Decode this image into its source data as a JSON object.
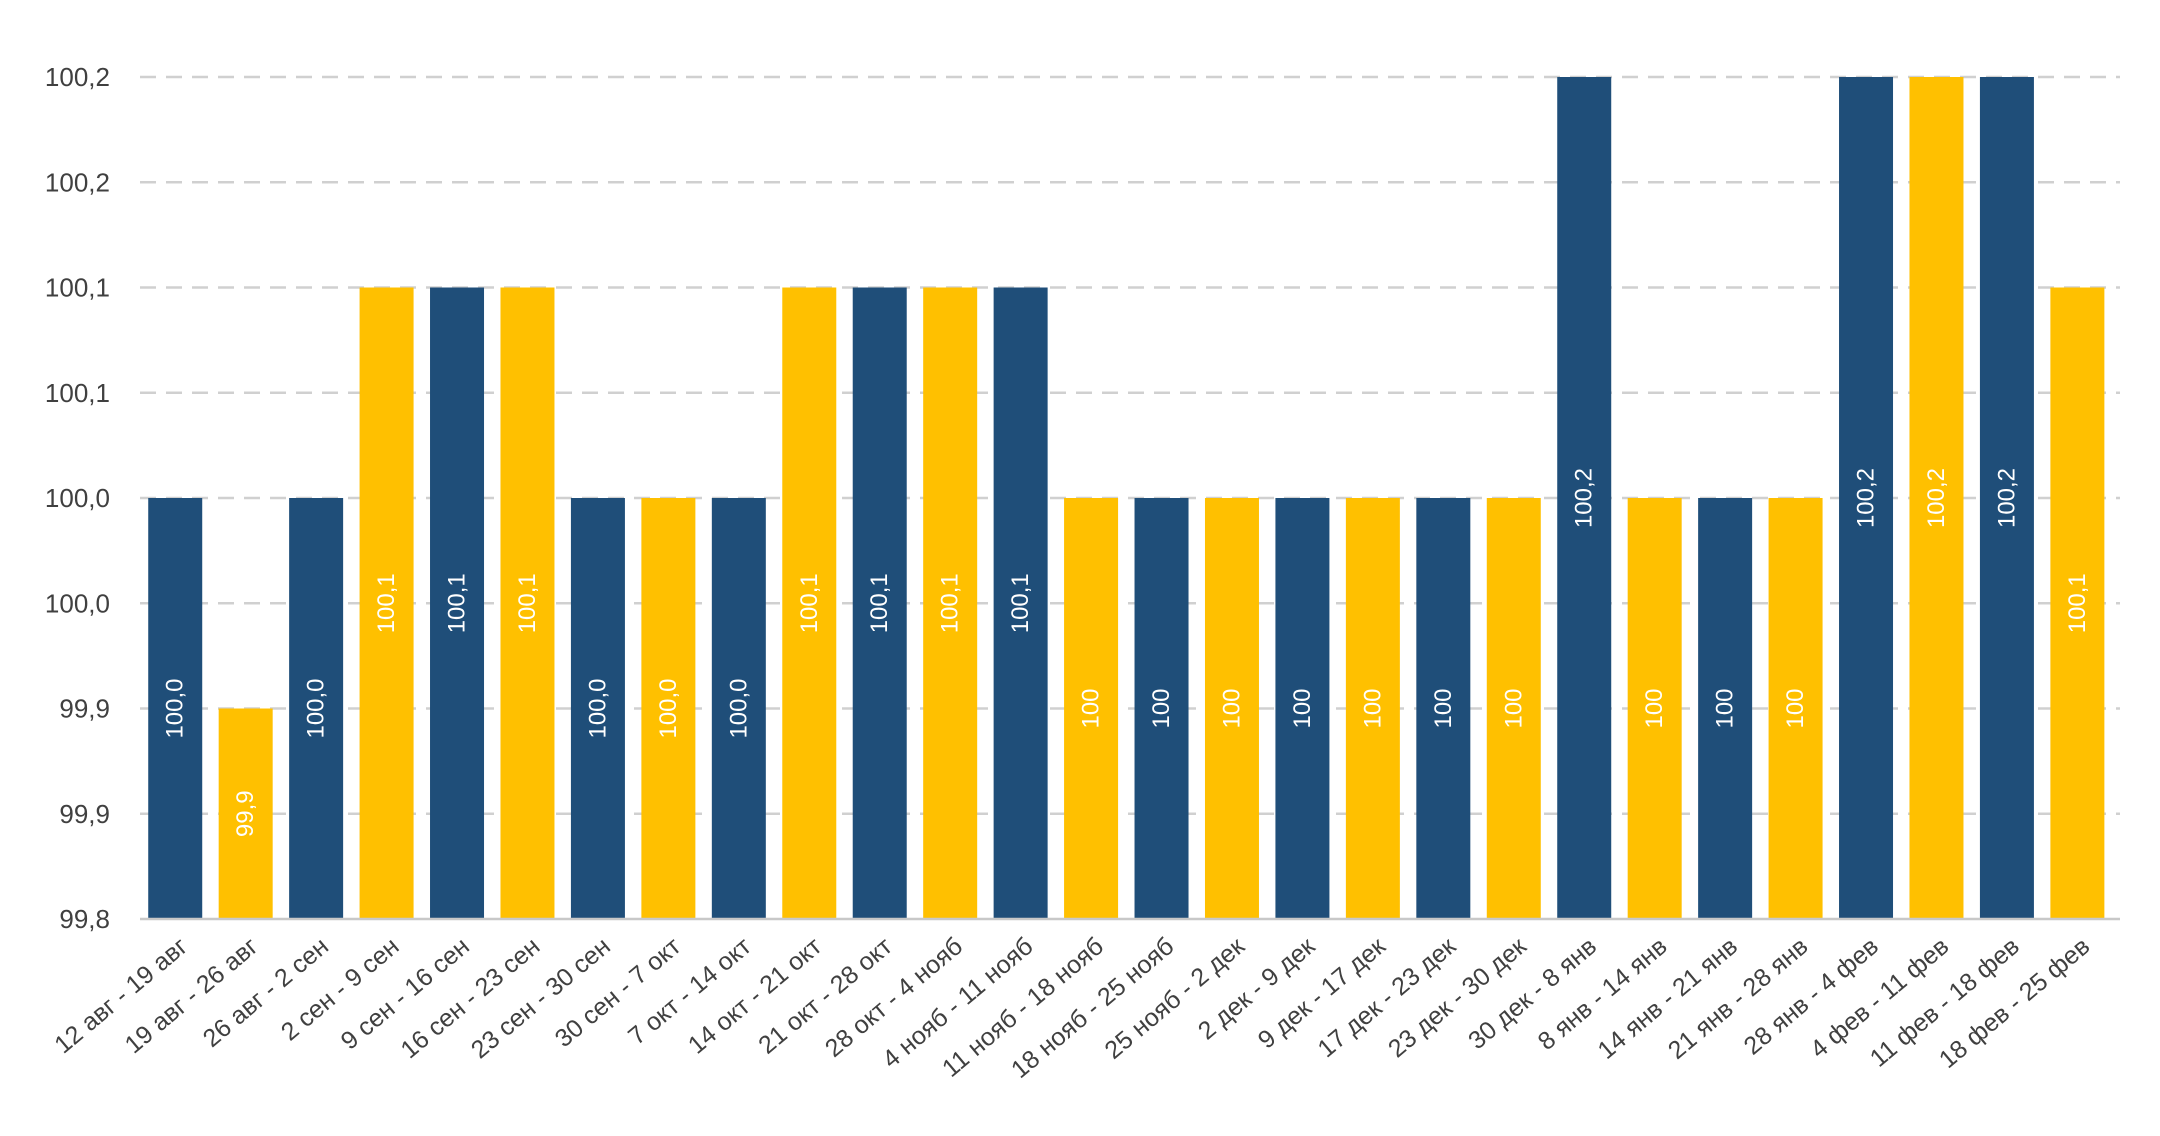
{
  "chart_data": {
    "type": "bar",
    "title": "",
    "xlabel": "",
    "ylabel": "",
    "ylim": [
      99.8,
      100.2
    ],
    "grid": true,
    "y_tick_labels": [
      "99,8",
      "99,9",
      "99,9",
      "100,0",
      "100,0",
      "100,1",
      "100,1",
      "100,2",
      "100,2"
    ],
    "colors": {
      "navy": "#1F4E79",
      "gold": "#FFC000"
    },
    "categories": [
      "12 авг - 19 авг",
      "19 авг - 26 авг",
      "26 авг - 2 сен",
      "2 сен - 9 сен",
      "9 сен - 16 сен",
      "16 сен - 23 сен",
      "23 сен - 30 сен",
      "30 сен - 7 окт",
      "7 окт - 14 окт",
      "14 окт - 21 окт",
      "21 окт - 28 окт",
      "28 окт - 4 нояб",
      "4 нояб - 11 нояб",
      "11 нояб - 18 нояб",
      "18 нояб - 25 нояб",
      "25 нояб - 2 дек",
      "2 дек - 9 дек",
      "9 дек - 17 дек",
      "17 дек - 23 дек",
      "23 дек - 30 дек",
      "30 дек - 8 янв",
      "8 янв - 14 янв",
      "14 янв - 21 янв",
      "21 янв - 28 янв",
      "28 янв - 4 фев",
      "4 фев - 11 фев",
      "11 фев - 18 фев",
      "18 фев - 25 фев"
    ],
    "values": [
      100.0,
      99.9,
      100.0,
      100.1,
      100.1,
      100.1,
      100.0,
      100.0,
      100.0,
      100.1,
      100.1,
      100.1,
      100.1,
      100.0,
      100.0,
      100.0,
      100.0,
      100.0,
      100.0,
      100.0,
      100.2,
      100.0,
      100.0,
      100.0,
      100.2,
      100.2,
      100.2,
      100.1
    ],
    "data_labels": [
      "100,0",
      "99,9",
      "100,0",
      "100,1",
      "100,1",
      "100,1",
      "100,0",
      "100,0",
      "100,0",
      "100,1",
      "100,1",
      "100,1",
      "100,1",
      "100",
      "100",
      "100",
      "100",
      "100",
      "100",
      "100",
      "100,2",
      "100",
      "100",
      "100",
      "100,2",
      "100,2",
      "100,2",
      "100,1"
    ],
    "bar_colors": [
      "navy",
      "gold",
      "navy",
      "gold",
      "navy",
      "gold",
      "navy",
      "gold",
      "navy",
      "gold",
      "navy",
      "gold",
      "navy",
      "gold",
      "navy",
      "gold",
      "navy",
      "gold",
      "navy",
      "gold",
      "navy",
      "gold",
      "navy",
      "gold",
      "navy",
      "gold",
      "navy",
      "gold"
    ]
  }
}
